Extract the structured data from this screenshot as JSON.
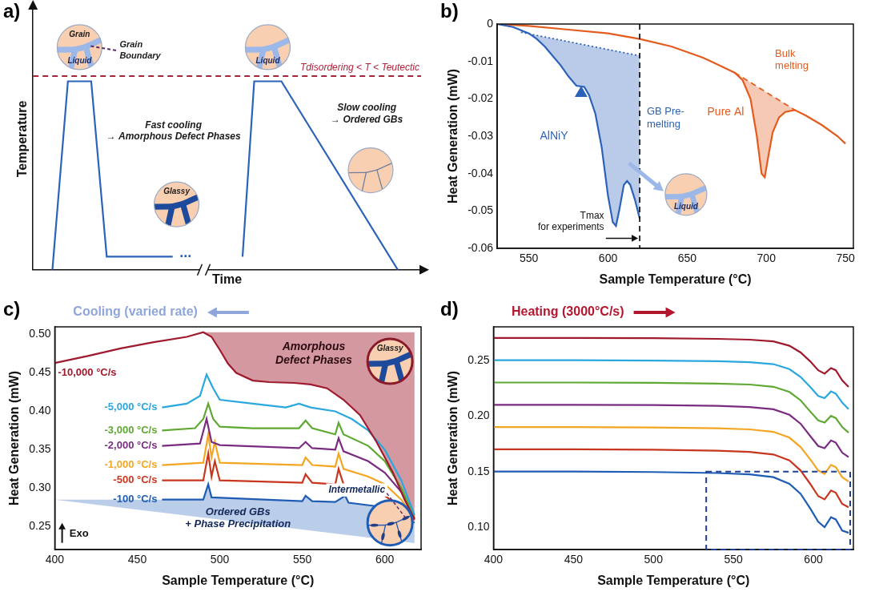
{
  "chart_data": [
    {
      "panel": "a)",
      "type": "line",
      "x_label": "Time",
      "y_label": "Temperature",
      "tick_labels": false,
      "grid": false,
      "xlim": [
        0,
        100
      ],
      "ylim": [
        0,
        100
      ],
      "x": [
        5,
        9,
        15,
        19,
        36,
        44,
        54,
        57,
        64,
        94
      ],
      "series": [
        {
          "color": "#2a63b8",
          "values": [
            0,
            72,
            72,
            5,
            5,
            null,
            5,
            72,
            72,
            0
          ]
        }
      ],
      "hline": {
        "value": 74,
        "label": "Tdisordering < T < Teutectic",
        "color": "#b0213a",
        "line_style": "dashed"
      },
      "annotations": {
        "grain": "Grain",
        "liquid1": "Liquid",
        "boundary": [
          "Grain",
          "Boundary"
        ],
        "liquid2": "Liquid",
        "fast": [
          "Fast cooling",
          "→ Amorphous Defect Phases"
        ],
        "glassy": "Glassy",
        "slow": [
          "Slow cooling",
          "→ Ordered GBs"
        ],
        "break": "..."
      }
    },
    {
      "panel": "b)",
      "type": "line",
      "x_label": "Sample Temperature (°C)",
      "y_label": "Heat Generation (mW)",
      "grid": false,
      "xlim": [
        530,
        755
      ],
      "xticks": [
        550,
        600,
        650,
        700,
        750
      ],
      "ylim": [
        -0.06,
        0
      ],
      "yticks": [
        -0.06,
        -0.05,
        -0.04,
        -0.03,
        -0.02,
        -0.01,
        0
      ],
      "series": [
        {
          "name": "AlNiY",
          "color": "#2c62b8",
          "x": [
            530,
            540,
            550,
            555,
            560,
            565,
            570,
            575,
            580,
            585,
            588,
            592,
            596,
            600,
            603,
            605,
            607,
            610,
            612,
            614,
            617,
            620
          ],
          "values": [
            0,
            -0.0008,
            -0.0025,
            -0.004,
            -0.006,
            -0.0085,
            -0.011,
            -0.014,
            -0.0165,
            -0.0168,
            -0.019,
            -0.024,
            -0.033,
            -0.046,
            -0.053,
            -0.054,
            -0.05,
            -0.043,
            -0.042,
            -0.043,
            -0.047,
            -0.052
          ]
        },
        {
          "name": "Pure Al",
          "color": "#e45b1e",
          "x": [
            530,
            550,
            575,
            600,
            620,
            640,
            660,
            670,
            680,
            685,
            690,
            694,
            697,
            699,
            701,
            704,
            708,
            712,
            718,
            725,
            735,
            745,
            750
          ],
          "values": [
            0,
            -0.0005,
            -0.0015,
            -0.0025,
            -0.004,
            -0.006,
            -0.009,
            -0.011,
            -0.013,
            -0.015,
            -0.02,
            -0.03,
            -0.04,
            -0.041,
            -0.036,
            -0.029,
            -0.025,
            -0.0235,
            -0.023,
            -0.0245,
            -0.027,
            -0.03,
            -0.032
          ]
        },
        {
          "color": "#2c62b8",
          "line_style": "dotted",
          "x": [
            545,
            620
          ],
          "values": [
            -0.0022,
            -0.0085
          ]
        },
        {
          "color": "#e45b1e",
          "line_style": "dashed",
          "x": [
            680,
            718
          ],
          "values": [
            -0.013,
            -0.023
          ]
        },
        {
          "type": "scatter",
          "marker": "triangle",
          "color": "#2c62b8",
          "x": [
            583
          ],
          "values": [
            -0.0185
          ]
        }
      ],
      "vline": {
        "value": 620,
        "line_style": "dashed",
        "color": "#000000",
        "label": [
          "Tmax",
          "for experiments"
        ]
      },
      "annotations": {
        "gb": [
          "GB Pre-",
          "melting"
        ],
        "bulk": [
          "Bulk",
          "melting"
        ],
        "liquid": "Liquid"
      }
    },
    {
      "panel": "c)",
      "type": "line",
      "title": "Cooling (varied rate)",
      "x_label": "Sample Temperature (°C)",
      "y_label": "Heat Generation (mW)",
      "grid": false,
      "xlim": [
        400,
        622
      ],
      "xticks": [
        400,
        450,
        500,
        550,
        600
      ],
      "ylim": [
        0.22,
        0.51
      ],
      "yticks": [
        0.25,
        {
          "value": 0.3,
          "label": "0.30"
        },
        0.35,
        {
          "value": 0.4,
          "label": "0.40"
        },
        0.45,
        {
          "value": 0.5,
          "label": "0.50"
        }
      ],
      "series": [
        {
          "name": "-10,000 °C/s",
          "color": "#a01a2e",
          "x": [
            400,
            420,
            440,
            460,
            480,
            490,
            495,
            500,
            505,
            510,
            520,
            530,
            545,
            555,
            565,
            575,
            585,
            595,
            605,
            612,
            618
          ],
          "values": [
            0.463,
            0.472,
            0.482,
            0.49,
            0.497,
            0.503,
            0.497,
            0.48,
            0.462,
            0.45,
            0.44,
            0.438,
            0.437,
            0.435,
            0.43,
            0.415,
            0.395,
            0.36,
            0.32,
            0.285,
            0.26
          ]
        },
        {
          "name": "-5,000 °C/s",
          "color": "#2aa7df",
          "x": [
            465,
            480,
            488,
            492,
            496,
            500,
            520,
            540,
            548,
            555,
            570,
            580,
            590,
            600,
            610,
            618
          ],
          "values": [
            0.405,
            0.41,
            0.42,
            0.448,
            0.43,
            0.415,
            0.41,
            0.405,
            0.41,
            0.405,
            0.4,
            0.39,
            0.375,
            0.35,
            0.31,
            0.265
          ]
        },
        {
          "name": "-3,000 °C/s",
          "color": "#5fa832",
          "x": [
            465,
            485,
            490,
            493,
            496,
            500,
            520,
            548,
            552,
            556,
            570,
            572,
            575,
            590,
            600,
            610,
            618
          ],
          "values": [
            0.375,
            0.378,
            0.39,
            0.41,
            0.39,
            0.38,
            0.378,
            0.378,
            0.388,
            0.378,
            0.37,
            0.385,
            0.37,
            0.355,
            0.335,
            0.3,
            0.262
          ]
        },
        {
          "name": "-2,000 °C/s",
          "color": "#7a2c80",
          "x": [
            465,
            488,
            492,
            495,
            500,
            548,
            552,
            556,
            570,
            572,
            575,
            590,
            600,
            610,
            618
          ],
          "values": [
            0.355,
            0.358,
            0.39,
            0.36,
            0.356,
            0.352,
            0.36,
            0.352,
            0.35,
            0.365,
            0.348,
            0.335,
            0.32,
            0.295,
            0.26
          ]
        },
        {
          "name": "-1,000 °C/s",
          "color": "#f4a623",
          "x": [
            465,
            490,
            493,
            495,
            497,
            500,
            550,
            552,
            556,
            570,
            572,
            575,
            590,
            600,
            610,
            618
          ],
          "values": [
            0.33,
            0.333,
            0.37,
            0.34,
            0.36,
            0.333,
            0.33,
            0.34,
            0.33,
            0.328,
            0.345,
            0.325,
            0.315,
            0.305,
            0.285,
            0.26
          ]
        },
        {
          "name": "-500 °C/s",
          "color": "#c8361e",
          "x": [
            465,
            490,
            493,
            495,
            497,
            500,
            550,
            552,
            556,
            570,
            572,
            575,
            590,
            600,
            610,
            618
          ],
          "values": [
            0.31,
            0.31,
            0.345,
            0.315,
            0.335,
            0.31,
            0.307,
            0.318,
            0.307,
            0.305,
            0.325,
            0.305,
            0.298,
            0.29,
            0.275,
            0.258
          ]
        },
        {
          "name": "-100 °C/s",
          "color": "#1f5cb5",
          "x": [
            465,
            490,
            493,
            495,
            550,
            552,
            556,
            570,
            576,
            578,
            600,
            610,
            618
          ],
          "values": [
            0.285,
            0.285,
            0.305,
            0.288,
            0.283,
            0.29,
            0.283,
            0.282,
            0.29,
            0.281,
            0.275,
            0.265,
            0.255
          ]
        }
      ],
      "annotations": {
        "amorphous": [
          "Amorphous",
          "Defect Phases"
        ],
        "glassy": "Glassy",
        "ordered": [
          "Ordered GBs",
          "+ Phase Precipitation"
        ],
        "intermetallic": "Intermetallic",
        "exo": "Exo"
      }
    },
    {
      "panel": "d)",
      "type": "line",
      "title": "Heating (3000°C/s)",
      "x_label": "Sample Temperature (°C)",
      "y_label": "Heat Generation (mW)",
      "grid": false,
      "xlim": [
        400,
        625
      ],
      "xticks": [
        400,
        450,
        500,
        550,
        600
      ],
      "ylim": [
        0.08,
        0.28
      ],
      "yticks": [
        {
          "value": 0.1,
          "label": "0.10"
        },
        0.15,
        {
          "value": 0.2,
          "label": "0.20"
        },
        0.25
      ],
      "x": [
        400,
        450,
        500,
        540,
        560,
        575,
        585,
        592,
        598,
        603,
        607,
        611,
        614,
        618,
        622
      ],
      "series": [
        {
          "color": "#a01a2e",
          "values": [
            0.27,
            0.27,
            0.2698,
            0.2692,
            0.2685,
            0.267,
            0.263,
            0.257,
            0.249,
            0.241,
            0.238,
            0.243,
            0.241,
            0.232,
            0.226
          ]
        },
        {
          "color": "#2aa7df",
          "values": [
            0.25,
            0.25,
            0.2497,
            0.2491,
            0.2483,
            0.2465,
            0.242,
            0.235,
            0.226,
            0.218,
            0.216,
            0.222,
            0.22,
            0.212,
            0.206
          ]
        },
        {
          "color": "#5fa832",
          "values": [
            0.23,
            0.23,
            0.2297,
            0.229,
            0.2282,
            0.2262,
            0.2215,
            0.214,
            0.204,
            0.196,
            0.194,
            0.2,
            0.198,
            0.19,
            0.185
          ]
        },
        {
          "color": "#7a2c80",
          "values": [
            0.21,
            0.21,
            0.2097,
            0.209,
            0.208,
            0.206,
            0.201,
            0.193,
            0.182,
            0.173,
            0.171,
            0.178,
            0.176,
            0.167,
            0.163
          ]
        },
        {
          "color": "#f4a623",
          "values": [
            0.19,
            0.19,
            0.1896,
            0.1889,
            0.1879,
            0.1857,
            0.1805,
            0.172,
            0.161,
            0.151,
            0.148,
            0.156,
            0.154,
            0.145,
            0.141
          ]
        },
        {
          "color": "#c8361e",
          "values": [
            0.17,
            0.17,
            0.1696,
            0.1688,
            0.1677,
            0.1654,
            0.16,
            0.151,
            0.139,
            0.128,
            0.125,
            0.133,
            0.131,
            0.121,
            0.118
          ]
        },
        {
          "color": "#1f5cb5",
          "values": [
            0.15,
            0.15,
            0.1496,
            0.1487,
            0.1475,
            0.145,
            0.139,
            0.13,
            0.117,
            0.105,
            0.1,
            0.109,
            0.107,
            0.097,
            0.095
          ]
        }
      ],
      "box": {
        "x": [
          533,
          623
        ],
        "y": [
          0.08,
          0.15
        ],
        "color": "#1f3f8f",
        "line_style": "dashed"
      }
    }
  ]
}
